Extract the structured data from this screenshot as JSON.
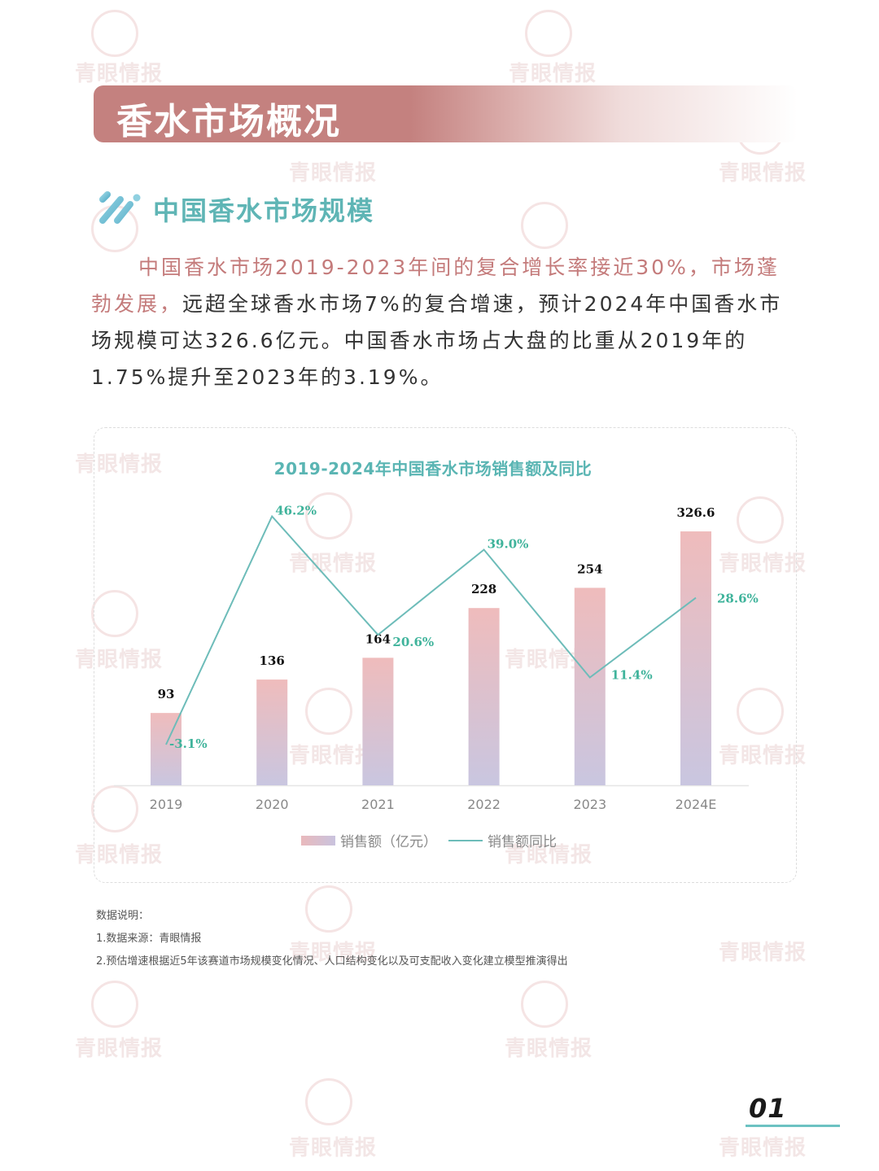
{
  "section": {
    "title": "香水市场概况"
  },
  "subheading": {
    "title": "中国香水市场规模"
  },
  "paragraph": {
    "highlight": "中国香水市场2019-2023年间的复合增长率接近30%，市场蓬勃发展，",
    "body": "远超全球香水市场7%的复合增速，预计2024年中国香水市场规模可达326.6亿元。中国香水市场占大盘的比重从2019年的1.75%提升至2023年的3.19%。"
  },
  "watermark": {
    "text": "青眼情报"
  },
  "chart_data": {
    "type": "bar",
    "title": "2019-2024年中国香水市场销售额及同比",
    "categories": [
      "2019",
      "2020",
      "2021",
      "2022",
      "2023",
      "2024E"
    ],
    "series": [
      {
        "name": "销售额（亿元）",
        "type": "bar",
        "values": [
          93,
          136,
          164,
          228,
          254,
          326.6
        ],
        "labels": [
          "93",
          "136",
          "164",
          "228",
          "254",
          "326.6"
        ],
        "color_top": "#efbcbc",
        "color_bottom": "#c9c6e0"
      },
      {
        "name": "销售额同比",
        "type": "line",
        "values": [
          -3.1,
          46.2,
          20.6,
          39.0,
          11.4,
          28.6
        ],
        "labels": [
          "-3.1%",
          "46.2%",
          "20.6%",
          "39.0%",
          "11.4%",
          "28.6%"
        ],
        "color": "#6dbcb9"
      }
    ],
    "xlabel": "",
    "ylabel": "",
    "grid": false,
    "legend_position": "bottom"
  },
  "legend": {
    "bar_label": "销售额（亿元）",
    "line_label": "销售额同比"
  },
  "notes": {
    "heading": "数据说明：",
    "items": [
      "1.数据来源：青眼情报",
      "2.预估增速根据近5年该赛道市场规模变化情况、人口结构变化以及可支配收入变化建立模型推演得出"
    ]
  },
  "page": {
    "number": "01"
  }
}
